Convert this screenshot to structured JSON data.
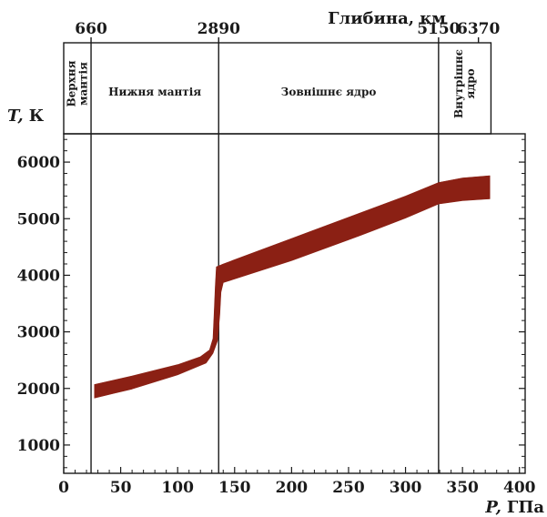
{
  "chart_data": {
    "type": "area",
    "title": "Глибина, км",
    "xlabel_symbol": "P,",
    "xlabel_unit": "ГПа",
    "ylabel_symbol": "T,",
    "ylabel_unit": "К",
    "xlim": [
      0,
      405
    ],
    "ylim": [
      500,
      6500
    ],
    "x_ticks": [
      {
        "value": 0,
        "label": "0"
      },
      {
        "value": 50,
        "label": "50"
      },
      {
        "value": 100,
        "label": "100"
      },
      {
        "value": 150,
        "label": "150"
      },
      {
        "value": 200,
        "label": "200"
      },
      {
        "value": 250,
        "label": "250"
      },
      {
        "value": 300,
        "label": "300"
      },
      {
        "value": 350,
        "label": "350"
      },
      {
        "value": 400,
        "label": "400"
      }
    ],
    "y_ticks": [
      {
        "value": 1000,
        "label": "1000"
      },
      {
        "value": 2000,
        "label": "2000"
      },
      {
        "value": 3000,
        "label": "3000"
      },
      {
        "value": 4000,
        "label": "4000"
      },
      {
        "value": 5000,
        "label": "5000"
      },
      {
        "value": 6000,
        "label": "6000"
      }
    ],
    "depth_ticks": [
      {
        "pressure": 24,
        "label": "660"
      },
      {
        "pressure": 136,
        "label": "2890"
      },
      {
        "pressure": 329,
        "label": "5150"
      },
      {
        "pressure": 364,
        "label": "6370"
      }
    ],
    "zones": [
      {
        "label": "Верхня мантія",
        "p_start": 0,
        "p_end": 24,
        "orientation": "vertical"
      },
      {
        "label": "Нижня мантія",
        "p_start": 24,
        "p_end": 136,
        "orientation": "horizontal"
      },
      {
        "label": "Зовнішнє ядро",
        "p_start": 136,
        "p_end": 329,
        "orientation": "horizontal"
      },
      {
        "label": "Внутрішнє ядро",
        "p_start": 329,
        "p_end": 375,
        "orientation": "vertical"
      }
    ],
    "series": [
      {
        "upper": [
          [
            27,
            2070
          ],
          [
            60,
            2220
          ],
          [
            100,
            2420
          ],
          [
            120,
            2560
          ],
          [
            128,
            2680
          ],
          [
            131,
            2880
          ],
          [
            132,
            3300
          ],
          [
            133,
            3800
          ],
          [
            134,
            4150
          ],
          [
            140,
            4200
          ],
          [
            200,
            4650
          ],
          [
            260,
            5100
          ],
          [
            300,
            5400
          ],
          [
            329,
            5640
          ],
          [
            350,
            5720
          ],
          [
            374,
            5760
          ]
        ],
        "lower": [
          [
            27,
            1830
          ],
          [
            60,
            1990
          ],
          [
            100,
            2240
          ],
          [
            125,
            2450
          ],
          [
            131,
            2620
          ],
          [
            135,
            2840
          ],
          [
            137,
            3300
          ],
          [
            138,
            3700
          ],
          [
            140,
            3870
          ],
          [
            200,
            4260
          ],
          [
            260,
            4700
          ],
          [
            300,
            5010
          ],
          [
            329,
            5260
          ],
          [
            350,
            5320
          ],
          [
            374,
            5350
          ]
        ]
      }
    ],
    "band_color": "#8b2014"
  }
}
